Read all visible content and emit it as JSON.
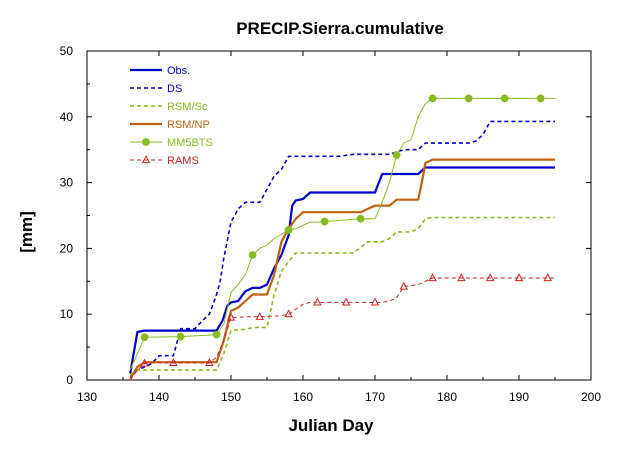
{
  "chart_data": {
    "type": "line",
    "title": "PRECIP.Sierra.cumulative",
    "xlabel": "Julian Day",
    "ylabel": "[mm]",
    "xlim": [
      130,
      200
    ],
    "ylim": [
      0,
      50
    ],
    "xticks": [
      130,
      140,
      150,
      160,
      170,
      180,
      190,
      200
    ],
    "yticks": [
      0,
      10,
      20,
      30,
      40,
      50
    ],
    "grid": false,
    "legend_position": "top-left",
    "series": [
      {
        "name": "Obs.",
        "color": "#0000cc",
        "dash": "solid",
        "width": 2.2,
        "marker": "none",
        "points": [
          [
            136,
            1
          ],
          [
            137,
            7.3
          ],
          [
            138,
            7.5
          ],
          [
            148,
            7.5
          ],
          [
            148.8,
            9
          ],
          [
            149.5,
            11.3
          ],
          [
            150,
            11.8
          ],
          [
            151,
            12
          ],
          [
            152,
            13.5
          ],
          [
            153,
            14
          ],
          [
            154,
            14
          ],
          [
            155,
            14.5
          ],
          [
            156,
            17
          ],
          [
            157,
            19
          ],
          [
            158,
            22
          ],
          [
            158.5,
            26.5
          ],
          [
            159,
            27.3
          ],
          [
            160,
            27.5
          ],
          [
            161,
            28.5
          ],
          [
            170,
            28.5
          ],
          [
            171,
            31.3
          ],
          [
            173,
            31.3
          ],
          [
            174,
            31.3
          ],
          [
            176,
            31.3
          ],
          [
            177,
            32.3
          ],
          [
            195,
            32.3
          ]
        ]
      },
      {
        "name": "DS",
        "color": "#0000cc",
        "dash": "4,3",
        "width": 1.6,
        "marker": "none",
        "points": [
          [
            136,
            0.5
          ],
          [
            137,
            1.5
          ],
          [
            139,
            2.5
          ],
          [
            140,
            3.7
          ],
          [
            142,
            3.7
          ],
          [
            143,
            7.8
          ],
          [
            145,
            7.8
          ],
          [
            146,
            9
          ],
          [
            147,
            10
          ],
          [
            148,
            13
          ],
          [
            148.5,
            15
          ],
          [
            149,
            18.5
          ],
          [
            150,
            24
          ],
          [
            151,
            26
          ],
          [
            152,
            27
          ],
          [
            154,
            27
          ],
          [
            155,
            29
          ],
          [
            156,
            31
          ],
          [
            157,
            32
          ],
          [
            158,
            34
          ],
          [
            165,
            34
          ],
          [
            167,
            34.3
          ],
          [
            170,
            34.3
          ],
          [
            172,
            34.3
          ],
          [
            174,
            35
          ],
          [
            176,
            35
          ],
          [
            177,
            36
          ],
          [
            183,
            36
          ],
          [
            184,
            36.3
          ],
          [
            185,
            37.3
          ],
          [
            186,
            39.3
          ],
          [
            195,
            39.3
          ]
        ]
      },
      {
        "name": "RSM/Sc",
        "color": "#88bb22",
        "dash": "4,3",
        "width": 1.6,
        "marker": "none",
        "points": [
          [
            136,
            0.8
          ],
          [
            137,
            1.5
          ],
          [
            148,
            1.5
          ],
          [
            149,
            4
          ],
          [
            150,
            7.5
          ],
          [
            152,
            7.7
          ],
          [
            153,
            8
          ],
          [
            155,
            8
          ],
          [
            156,
            13
          ],
          [
            157,
            16.5
          ],
          [
            158,
            18
          ],
          [
            159,
            19.3
          ],
          [
            167,
            19.3
          ],
          [
            169,
            21
          ],
          [
            171,
            21
          ],
          [
            172,
            21.5
          ],
          [
            173,
            22.5
          ],
          [
            175,
            22.5
          ],
          [
            176,
            23
          ],
          [
            177,
            24.5
          ],
          [
            178,
            24.7
          ],
          [
            195,
            24.7
          ]
        ]
      },
      {
        "name": "RSM/NP",
        "color": "#c06010",
        "dash": "solid",
        "width": 2.2,
        "marker": "none",
        "points": [
          [
            136,
            0.2
          ],
          [
            137,
            2
          ],
          [
            138,
            2.7
          ],
          [
            148,
            2.7
          ],
          [
            149,
            6
          ],
          [
            150,
            10.5
          ],
          [
            151,
            11
          ],
          [
            152,
            12
          ],
          [
            153,
            13
          ],
          [
            155,
            13
          ],
          [
            156,
            16
          ],
          [
            157,
            21
          ],
          [
            158,
            23
          ],
          [
            159,
            24.5
          ],
          [
            160,
            25.5
          ],
          [
            168,
            25.5
          ],
          [
            169,
            26
          ],
          [
            170,
            26.5
          ],
          [
            172,
            26.5
          ],
          [
            173,
            27.4
          ],
          [
            176,
            27.4
          ],
          [
            176.5,
            30
          ],
          [
            177,
            33
          ],
          [
            178,
            33.5
          ],
          [
            195,
            33.5
          ]
        ]
      },
      {
        "name": "MM5BTS",
        "color": "#88bb22",
        "dash": "solid",
        "width": 1,
        "marker": "circle",
        "points": [
          [
            136,
            1.5
          ],
          [
            138,
            6.5
          ],
          [
            143,
            6.6
          ],
          [
            148,
            6.9
          ],
          [
            149,
            8.5
          ],
          [
            150,
            13.3
          ],
          [
            151,
            14.5
          ],
          [
            152,
            16
          ],
          [
            153,
            19
          ],
          [
            154,
            20
          ],
          [
            155,
            20.5
          ],
          [
            156,
            21.5
          ],
          [
            158,
            22.8
          ],
          [
            159,
            23
          ],
          [
            161,
            24
          ],
          [
            162,
            24
          ],
          [
            168,
            24.5
          ],
          [
            170,
            24.5
          ],
          [
            171,
            27
          ],
          [
            172,
            30
          ],
          [
            173,
            34.2
          ],
          [
            174,
            36
          ],
          [
            175,
            36.5
          ],
          [
            176,
            40
          ],
          [
            177,
            42
          ],
          [
            178,
            42.8
          ],
          [
            183,
            42.8
          ],
          [
            188,
            42.8
          ],
          [
            193,
            42.8
          ],
          [
            195,
            42.8
          ]
        ],
        "marker_x": [
          138,
          143,
          148,
          153,
          158,
          163,
          168,
          173,
          178,
          183,
          188,
          193
        ]
      },
      {
        "name": "RAMS",
        "color": "#cc2222",
        "dash": "4,3",
        "width": 1,
        "marker": "triangle",
        "points": [
          [
            136,
            0
          ],
          [
            137,
            1.5
          ],
          [
            138,
            2.5
          ],
          [
            139,
            2.6
          ],
          [
            147,
            2.6
          ],
          [
            148,
            3.5
          ],
          [
            149,
            6
          ],
          [
            150,
            9.5
          ],
          [
            152,
            9.6
          ],
          [
            154,
            9.6
          ],
          [
            156,
            9.7
          ],
          [
            157,
            9.8
          ],
          [
            158,
            10
          ],
          [
            160,
            11.5
          ],
          [
            161,
            11.8
          ],
          [
            171,
            11.8
          ],
          [
            172,
            12
          ],
          [
            173,
            12.5
          ],
          [
            174,
            14.2
          ],
          [
            176,
            14.5
          ],
          [
            177,
            15
          ],
          [
            178,
            15.5
          ],
          [
            195,
            15.5
          ]
        ],
        "marker_x": [
          138,
          142,
          147,
          150,
          154,
          158,
          162,
          166,
          170,
          174,
          178,
          182,
          186,
          190,
          194
        ]
      }
    ]
  }
}
